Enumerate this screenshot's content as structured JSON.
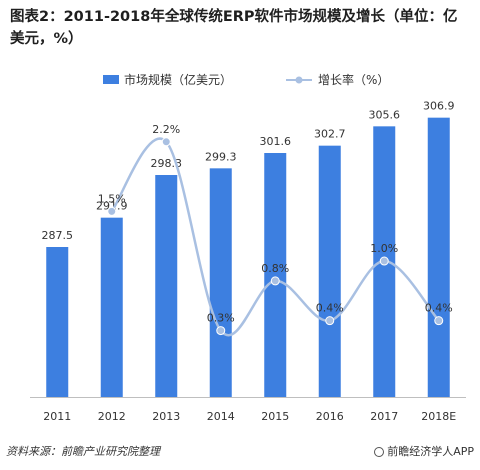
{
  "chart_data": {
    "type": "bar",
    "title": "图表2：2011-2018年全球传统ERP软件市场规模及增长（单位：亿美元，%）",
    "categories": [
      "2011",
      "2012",
      "2013",
      "2014",
      "2015",
      "2016",
      "2017",
      "2018E"
    ],
    "series": [
      {
        "name": "市场规模（亿美元）",
        "type": "bar",
        "color": "#3d7fe0",
        "values": [
          287.5,
          291.9,
          298.3,
          299.3,
          301.6,
          302.7,
          305.6,
          306.9
        ],
        "labels": [
          "287.5",
          "291.9",
          "298.3",
          "299.3",
          "301.6",
          "302.7",
          "305.6",
          "306.9"
        ]
      },
      {
        "name": "增长率（%）",
        "type": "line",
        "color": "#a9c0e2",
        "values": [
          null,
          1.5,
          2.2,
          0.3,
          0.8,
          0.4,
          1.0,
          0.4
        ],
        "labels": [
          "",
          "1.5%",
          "2.2%",
          "0.3%",
          "0.8%",
          "0.4%",
          "1.0%",
          "0.4%"
        ]
      }
    ],
    "legend": "top",
    "grid": false,
    "y_axes": "hidden"
  },
  "footer": {
    "source": "资料来源：前瞻产业研究院整理",
    "brand": "前瞻经济学人APP",
    "brand_icon": "brand-logo-icon"
  }
}
